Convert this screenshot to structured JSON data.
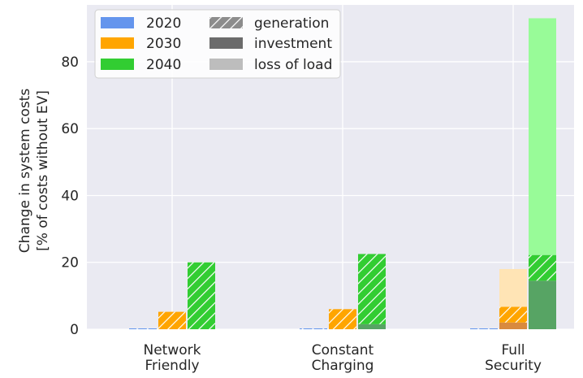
{
  "chart_data": {
    "type": "bar",
    "categories": [
      "Network\nFriendly",
      "Constant\nCharging",
      "Full\nSecurity"
    ],
    "years": [
      "2020",
      "2030",
      "2040"
    ],
    "components": [
      "generation",
      "investment",
      "loss of load"
    ],
    "colors": {
      "2020": "#6495ED",
      "2030": "#FFA500",
      "2040": "#32CD32",
      "investment": {
        "2020": "#5b7fc8",
        "2030": "#d98a3e",
        "2040": "#57a464"
      },
      "loss_of_load": {
        "2020": "#c6d6f5",
        "2030": "#ffe4b5",
        "2040": "#98fb98"
      },
      "legend_investment": "#6b6b6b",
      "legend_loss": "#bdbdbd",
      "legend_generation": "#8c8c8c",
      "plot_bg": "#eaeaf2",
      "grid": "#ffffff"
    },
    "series": [
      {
        "name": "2020",
        "values": [
          {
            "investment": 0,
            "generation": 0.1,
            "loss_of_load": 0
          },
          {
            "investment": 0,
            "generation": 0.1,
            "loss_of_load": 0
          },
          {
            "investment": 0,
            "generation": 0.1,
            "loss_of_load": 0
          }
        ]
      },
      {
        "name": "2030",
        "values": [
          {
            "investment": 0,
            "generation": 5.2,
            "loss_of_load": 0
          },
          {
            "investment": 0,
            "generation": 6.0,
            "loss_of_load": 0
          },
          {
            "investment": 2.0,
            "generation": 4.7,
            "loss_of_load": 11.3
          }
        ]
      },
      {
        "name": "2040",
        "values": [
          {
            "investment": 0,
            "generation": 20.0,
            "loss_of_load": 0
          },
          {
            "investment": 1.5,
            "generation": 21.0,
            "loss_of_load": 0
          },
          {
            "investment": 14.5,
            "generation": 7.7,
            "loss_of_load": 70.8
          }
        ]
      }
    ],
    "ylabel_line1": "Change in system costs",
    "ylabel_line2": "[% of costs without EV]",
    "ylim": [
      0,
      97
    ],
    "yticks": [
      0,
      20,
      40,
      60,
      80
    ],
    "grid": true,
    "legend_position": "top-left"
  }
}
